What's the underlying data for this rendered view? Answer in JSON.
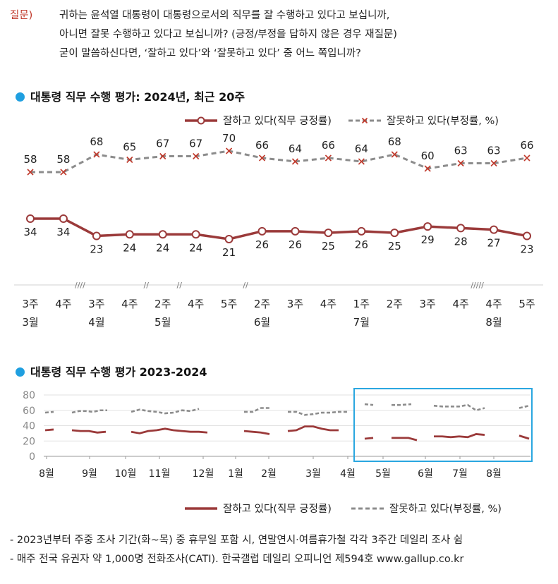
{
  "question": {
    "label": "질문)",
    "lines": [
      "귀하는 윤석열 대통령이 대통령으로서의 직무를 잘 수행하고 있다고 보십니까,",
      "아니면 잘못 수행하고 있다고 보십니까? (긍정/부정을 답하지 않은 경우 재질문)",
      "굳이 말씀하신다면, ‘잘하고 있다’와 ‘잘못하고 있다’ 중 어느 쪽입니까?"
    ]
  },
  "colors": {
    "positive": "#9b3a3a",
    "negative": "#8c8c8c",
    "accent": "#1f9fe0",
    "highlight_box": "#2aa7e0"
  },
  "chart_data": [
    {
      "type": "line",
      "title": "대통령 직무 수행 평가: 2024년, 최근 20주",
      "x": [
        "3주",
        "4주",
        "3주",
        "4주",
        "2주",
        "4주",
        "5주",
        "2주",
        "3주",
        "4주",
        "1주",
        "2주",
        "3주",
        "4주",
        "4주",
        "5주"
      ],
      "month_labels": [
        {
          "label": "3월",
          "index": 0
        },
        {
          "label": "4월",
          "index": 2
        },
        {
          "label": "5월",
          "index": 4
        },
        {
          "label": "6월",
          "index": 7
        },
        {
          "label": "7월",
          "index": 10
        },
        {
          "label": "8월",
          "index": 14
        }
      ],
      "break_marks": [
        {
          "text": "////",
          "position": 1.5
        },
        {
          "text": "//",
          "position": 3.5
        },
        {
          "text": "//",
          "position": 4.5
        },
        {
          "text": "//",
          "position": 6.5
        },
        {
          "text": "/////",
          "position": 13.5
        }
      ],
      "series": [
        {
          "name": "잘하고 있다(직무 긍정률)",
          "values": [
            34,
            34,
            23,
            24,
            24,
            24,
            21,
            26,
            26,
            25,
            26,
            25,
            29,
            28,
            27,
            23
          ]
        },
        {
          "name": "잘못하고 있다(부정률, %)",
          "values": [
            58,
            58,
            68,
            65,
            67,
            67,
            70,
            66,
            64,
            66,
            64,
            68,
            60,
            63,
            63,
            66
          ]
        }
      ],
      "grid": false,
      "legend": "top-right"
    },
    {
      "type": "line",
      "title": "대통령 직무 수행 평가 2023-2024",
      "yticks": [
        0,
        20,
        40,
        60,
        80
      ],
      "ylim": [
        0,
        80
      ],
      "month_labels": [
        "8월",
        "9월",
        "10월",
        "11월",
        "12월",
        "1월",
        "2월",
        "3월",
        "4월",
        "5월",
        "6월",
        "7월",
        "8월"
      ],
      "series": [
        {
          "name": "잘하고 있다(직무 긍정률)",
          "segments": [
            [
              34,
              35
            ],
            [
              34,
              33,
              33,
              31,
              32
            ],
            [
              32,
              30,
              33,
              34,
              36,
              34,
              33,
              32,
              32,
              31
            ],
            [
              33,
              32,
              31,
              29
            ],
            [
              33,
              34,
              39,
              39,
              36,
              34,
              34
            ],
            [
              23,
              24
            ],
            [
              24,
              24,
              24,
              21
            ],
            [
              26,
              26,
              25,
              26,
              25,
              29,
              28
            ],
            [
              27,
              23
            ]
          ]
        },
        {
          "name": "잘못하고 있다(부정률, %)",
          "segments": [
            [
              57,
              58
            ],
            [
              57,
              59,
              59,
              58,
              60,
              60
            ],
            [
              58,
              61,
              59,
              58,
              56,
              57,
              60,
              59,
              62
            ],
            [
              58,
              58,
              63,
              63
            ],
            [
              58,
              58,
              54,
              55,
              57,
              57,
              58,
              58
            ],
            [
              68,
              67
            ],
            [
              67,
              67,
              68
            ],
            [
              66,
              65,
              65,
              65,
              67,
              60,
              63
            ],
            [
              63,
              66
            ]
          ]
        }
      ],
      "legend": "bottom-right"
    }
  ],
  "notes": [
    "- 2023년부터 주중 조사 기간(화~목) 중 휴무일 포함 시, 연말연시·여름휴가철 각각 3주간 데일리 조사 쉼",
    "- 매주 전국 유권자 약 1,000명 전화조사(CATI). 한국갤럽 데일리 오피니언 제594호 www.gallup.co.kr"
  ]
}
